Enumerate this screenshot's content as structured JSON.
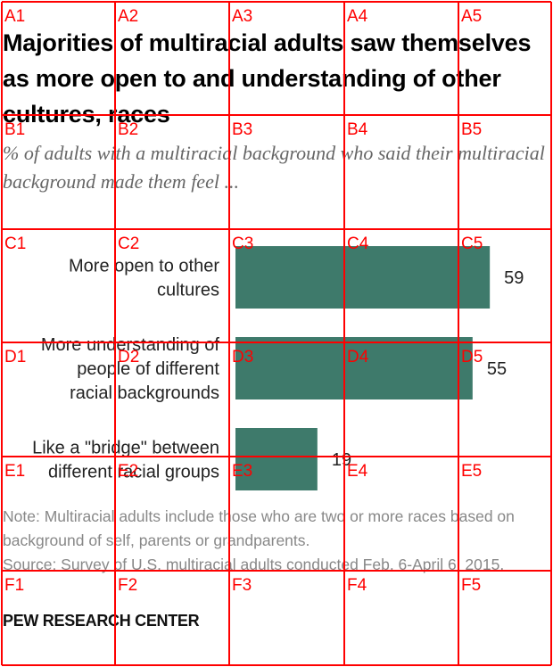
{
  "title": "Majorities of multiracial adults saw themselves as more open to and understanding of other cultures, races",
  "subtitle": "% of adults with a multiracial background who said their multiracial background made them feel ...",
  "chart_data": {
    "type": "bar",
    "orientation": "horizontal",
    "categories": [
      [
        "More open to other",
        "cultures"
      ],
      [
        "More understanding of",
        "people of different",
        "racial backgrounds"
      ],
      [
        "Like a \"bridge\" between",
        "different racial groups"
      ]
    ],
    "values": [
      59,
      55,
      19
    ],
    "value_labels": [
      "59",
      "55",
      "19"
    ],
    "bar_color": "#3e7a6b",
    "xlim": [
      0,
      60
    ],
    "grid": false,
    "legend": "none"
  },
  "notes": {
    "note": "Note: Multiracial adults include those who are two or more races based on background of self, parents or grandparents.",
    "source": "Source: Survey of U.S. multiracial adults conducted Feb. 6-April 6, 2015."
  },
  "brand": "PEW RESEARCH CENTER",
  "grid_overlay": {
    "color": "#ff0000",
    "rows": [
      "A",
      "B",
      "C",
      "D",
      "E",
      "F"
    ],
    "cols": [
      "1",
      "2",
      "3",
      "4",
      "5"
    ]
  }
}
